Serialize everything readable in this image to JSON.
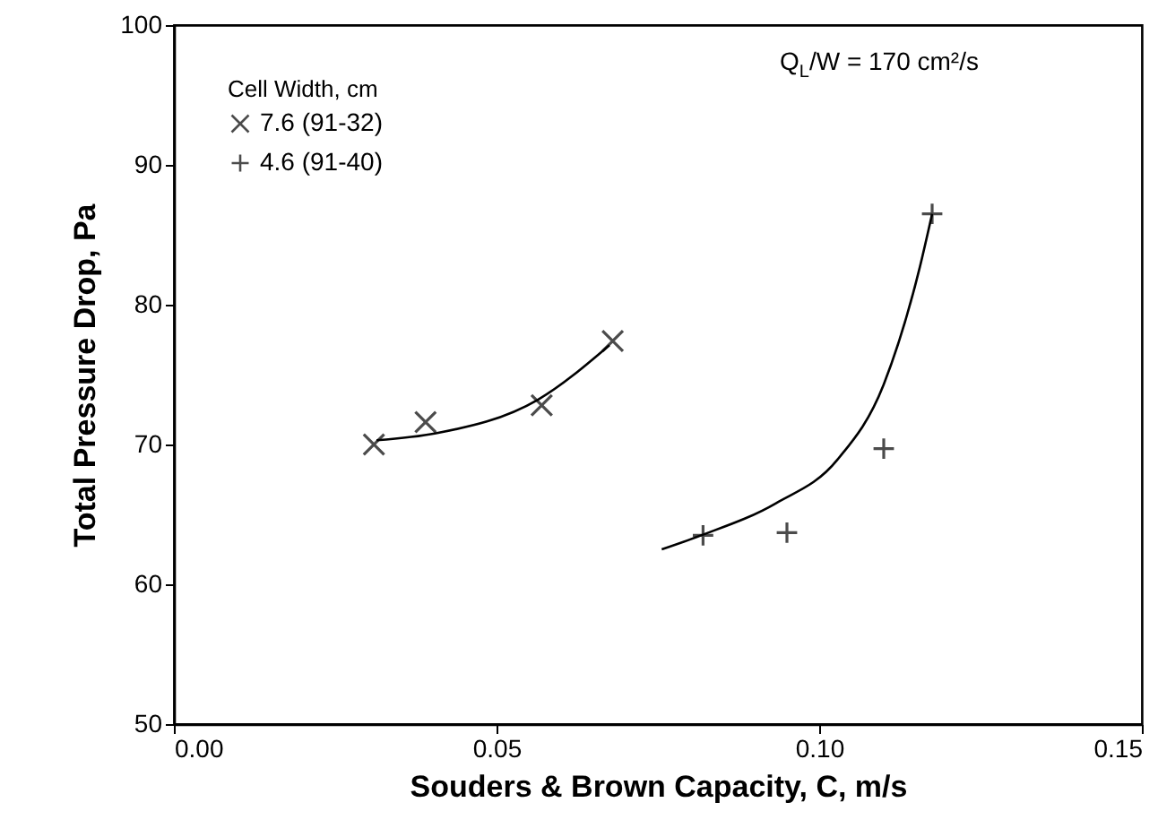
{
  "chart_data": {
    "type": "scatter",
    "xlabel": "Souders & Brown Capacity, C, m/s",
    "ylabel": "Total Pressure Drop, Pa",
    "legend_title": "Cell Width, cm",
    "legend": "top left",
    "annotations": [
      "Q$_{L}$/W = 170 cm²/s"
    ],
    "xlim": [
      0,
      0.15
    ],
    "xticks": [
      {
        "value": 0,
        "label": "0.00"
      },
      0.05,
      {
        "value": 0.1,
        "label": "0.10"
      },
      0.15
    ],
    "ylim": [
      50,
      100
    ],
    "yticks": [
      50,
      60,
      70,
      80,
      90,
      100
    ],
    "grid": false,
    "series": [
      {
        "name": "7.6 (91-32)",
        "type": "scatter",
        "marker": "x",
        "color": "#000000",
        "x": [
          0.031,
          0.039,
          0.057,
          0.068
        ],
        "values": [
          70,
          71.6,
          72.8,
          77.4
        ]
      },
      {
        "name": "4.6 (91-40)",
        "type": "scatter",
        "marker": "cross",
        "color": "#000000",
        "x": [
          0.082,
          0.095,
          0.11,
          0.1175
        ],
        "values": [
          63.5,
          63.7,
          69.7,
          86.5
        ]
      },
      {
        "type": "line",
        "color": "#000000",
        "x": [
          0.0314,
          0.0406,
          0.0564,
          0.0675
        ],
        "values": [
          70.3,
          70.8,
          73.2,
          77.1
        ]
      },
      {
        "type": "line",
        "color": "#000000",
        "x": [
          0.0756,
          0.0817,
          0.0933,
          0.1028,
          0.11,
          0.1156,
          0.1175
        ],
        "values": [
          62.5,
          63.5,
          65.8,
          68.9,
          74.3,
          82.7,
          86.5
        ]
      }
    ]
  }
}
